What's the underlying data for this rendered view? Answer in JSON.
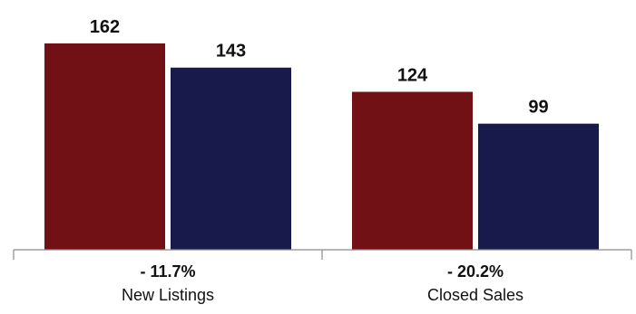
{
  "chart_data": {
    "type": "bar",
    "categories": [
      {
        "label": "New Listings",
        "change": "- 11.7%"
      },
      {
        "label": "Closed Sales",
        "change": "- 20.2%"
      }
    ],
    "series": [
      {
        "color": "#721115",
        "values": [
          162,
          124
        ]
      },
      {
        "color": "#181a4c",
        "values": [
          143,
          99
        ]
      }
    ],
    "ylim": [
      0,
      162
    ],
    "grid": false,
    "legend": "none"
  }
}
